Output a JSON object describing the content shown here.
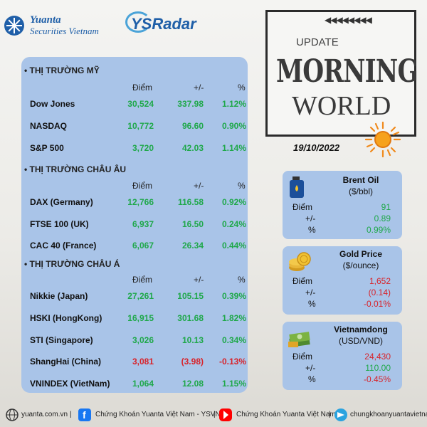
{
  "header": {
    "yuanta_line1": "Yuanta",
    "yuanta_line2": "Securities Vietnam",
    "ysradar": "YSRadar"
  },
  "banner": {
    "update": "UPDATE",
    "morning": "MORNING",
    "world": "WORLD",
    "date": "19/10/2022"
  },
  "colors": {
    "panel": "#a9c4e8",
    "up": "#1fa84a",
    "down": "#d8232a"
  },
  "markets": {
    "col_headers": [
      "Điểm",
      "+/-",
      "%"
    ],
    "sections": [
      {
        "title": "• THỊ TRƯỜNG MỸ",
        "rows": [
          {
            "name": "Dow Jones",
            "points": "30,524",
            "change": "337.98",
            "pct": "1.12%",
            "dir": "up"
          },
          {
            "name": "NASDAQ",
            "points": "10,772",
            "change": "96.60",
            "pct": "0.90%",
            "dir": "up"
          },
          {
            "name": "S&P 500",
            "points": "3,720",
            "change": "42.03",
            "pct": "1.14%",
            "dir": "up"
          }
        ]
      },
      {
        "title": "• THỊ TRƯỜNG CHÂU ÂU",
        "rows": [
          {
            "name": "DAX (Germany)",
            "points": "12,766",
            "change": "116.58",
            "pct": "0.92%",
            "dir": "up"
          },
          {
            "name": "FTSE 100 (UK)",
            "points": "6,937",
            "change": "16.50",
            "pct": "0.24%",
            "dir": "up"
          },
          {
            "name": "CAC 40 (France)",
            "points": "6,067",
            "change": "26.34",
            "pct": "0.44%",
            "dir": "up"
          }
        ]
      },
      {
        "title": "• THỊ TRƯỜNG CHÂU Á",
        "rows": [
          {
            "name": "Nikkie (Japan)",
            "points": "27,261",
            "change": "105.15",
            "pct": "0.39%",
            "dir": "up"
          },
          {
            "name": "HSKI (HongKong)",
            "points": "16,915",
            "change": "301.68",
            "pct": "1.82%",
            "dir": "up"
          },
          {
            "name": "STI (Singapore)",
            "points": "3,026",
            "change": "10.13",
            "pct": "0.34%",
            "dir": "up"
          },
          {
            "name": "ShangHai (China)",
            "points": "3,081",
            "change": "(3.98)",
            "pct": "-0.13%",
            "dir": "down"
          },
          {
            "name": "VNINDEX (VietNam)",
            "points": "1,064",
            "change": "12.08",
            "pct": "1.15%",
            "dir": "up"
          }
        ]
      }
    ]
  },
  "commodities": [
    {
      "title": "Brent Oil",
      "unit": "($/bbl)",
      "icon": "oil-can-icon",
      "labels": [
        "Điểm",
        "+/-",
        "%"
      ],
      "values": [
        "91",
        "0.89",
        "0.99%"
      ],
      "dir": "up"
    },
    {
      "title": "Gold Price",
      "unit": "($/ounce)",
      "icon": "gold-coins-icon",
      "labels": [
        "Điểm",
        "+/-",
        "%"
      ],
      "values": [
        "1,652",
        "(0.14)",
        "-0.01%"
      ],
      "dir": "down"
    },
    {
      "title": "Vietnamdong",
      "unit": "(USD/VND)",
      "icon": "money-stack-icon",
      "labels": [
        "Điểm",
        "+/-",
        "%"
      ],
      "values": [
        "24,430",
        "110.00",
        "-0.45%"
      ],
      "dir": "mixed",
      "value_dirs": [
        "down",
        "up",
        "down"
      ]
    }
  ],
  "footer": {
    "website": "yuanta.com.vn",
    "facebook": "Chứng Khoán Yuanta Việt Nam - YSVN",
    "youtube": "Chứng Khoán Yuanta Việt Nam",
    "telegram": "chungkhoanyuantavietnam",
    "sep": "|"
  }
}
